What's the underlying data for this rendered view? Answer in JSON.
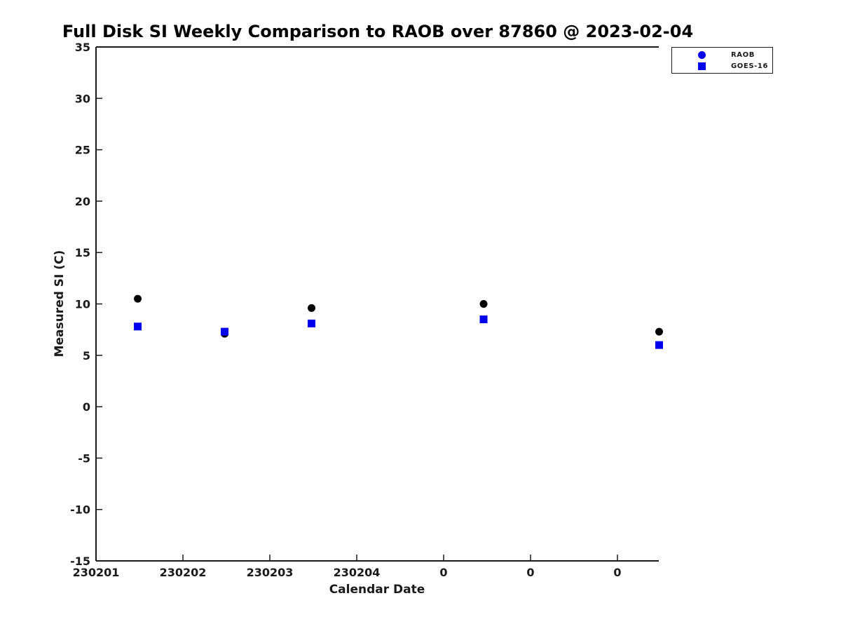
{
  "chart_data": {
    "type": "scatter",
    "title": "Full Disk SI Weekly Comparison to RAOB over 87860 @ 2023-02-04",
    "xlabel": "Calendar Date",
    "ylabel": "Measured SI (C)",
    "x_tick_labels": [
      "230201",
      "230202",
      "230203",
      "230204",
      "0",
      "0",
      "0"
    ],
    "y_ticks": [
      -15,
      -10,
      -5,
      0,
      5,
      10,
      15,
      20,
      25,
      30,
      35
    ],
    "ylim": [
      -15,
      35
    ],
    "grid": false,
    "legend_position": "top-right",
    "axis_color": "#1a1a1a",
    "series": [
      {
        "name": "RAOB",
        "marker": "circle",
        "color": "#000000",
        "legend_color": "#0000ee",
        "points": [
          {
            "x_tick_index": 0.48,
            "y": 10.5
          },
          {
            "x_tick_index": 1.48,
            "y": 7.1
          },
          {
            "x_tick_index": 2.48,
            "y": 9.6
          },
          {
            "x_tick_index": 4.46,
            "y": 10.0
          },
          {
            "x_tick_index": 6.48,
            "y": 7.3
          }
        ]
      },
      {
        "name": "GOES-16",
        "marker": "square",
        "color": "#0000ee",
        "legend_color": "#0000ee",
        "points": [
          {
            "x_tick_index": 0.48,
            "y": 7.8
          },
          {
            "x_tick_index": 1.48,
            "y": 7.3
          },
          {
            "x_tick_index": 2.48,
            "y": 8.1
          },
          {
            "x_tick_index": 4.46,
            "y": 8.5
          },
          {
            "x_tick_index": 6.48,
            "y": 6.0
          }
        ]
      }
    ]
  }
}
